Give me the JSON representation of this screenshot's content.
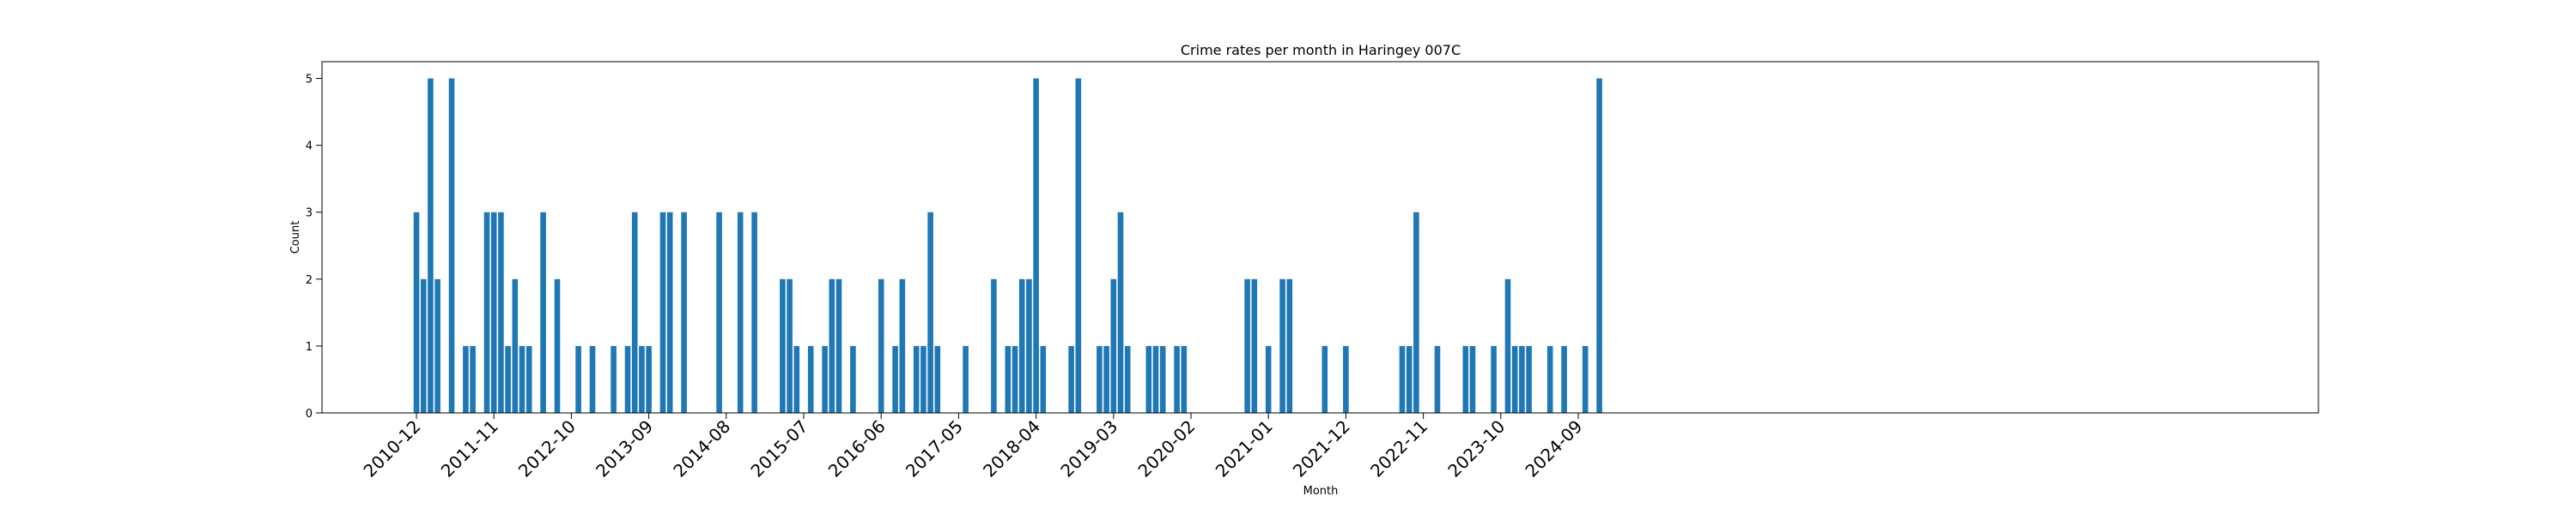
{
  "chart_data": {
    "type": "bar",
    "title": "Crime rates per month in Haringey 007C",
    "xlabel": "Month",
    "ylabel": "Count",
    "ylim": [
      0,
      5.25
    ],
    "yticks": [
      0,
      1,
      2,
      3,
      4,
      5
    ],
    "xticks": [
      "2010-12",
      "2011-11",
      "2012-10",
      "2013-09",
      "2014-08",
      "2015-07",
      "2016-06",
      "2017-05",
      "2018-04",
      "2019-03",
      "2020-02",
      "2021-01",
      "2021-12",
      "2022-11",
      "2023-10",
      "2024-09"
    ],
    "x_start": "2010-12",
    "x_end": "2024-09",
    "grid": false,
    "color": "#1f77b4",
    "bars": [
      {
        "x": "2010-12",
        "y": 3
      },
      {
        "x": "2011-01",
        "y": 2
      },
      {
        "x": "2011-02",
        "y": 5
      },
      {
        "x": "2011-03",
        "y": 2
      },
      {
        "x": "2011-05",
        "y": 5
      },
      {
        "x": "2011-07",
        "y": 1
      },
      {
        "x": "2011-08",
        "y": 1
      },
      {
        "x": "2011-10",
        "y": 3
      },
      {
        "x": "2011-11",
        "y": 3
      },
      {
        "x": "2011-12",
        "y": 3
      },
      {
        "x": "2012-01",
        "y": 1
      },
      {
        "x": "2012-02",
        "y": 2
      },
      {
        "x": "2012-03",
        "y": 1
      },
      {
        "x": "2012-04",
        "y": 1
      },
      {
        "x": "2012-06",
        "y": 3
      },
      {
        "x": "2012-08",
        "y": 2
      },
      {
        "x": "2012-11",
        "y": 1
      },
      {
        "x": "2013-01",
        "y": 1
      },
      {
        "x": "2013-04",
        "y": 1
      },
      {
        "x": "2013-06",
        "y": 1
      },
      {
        "x": "2013-07",
        "y": 3
      },
      {
        "x": "2013-08",
        "y": 1
      },
      {
        "x": "2013-09",
        "y": 1
      },
      {
        "x": "2013-11",
        "y": 3
      },
      {
        "x": "2013-12",
        "y": 3
      },
      {
        "x": "2014-02",
        "y": 3
      },
      {
        "x": "2014-07",
        "y": 3
      },
      {
        "x": "2014-10",
        "y": 3
      },
      {
        "x": "2014-12",
        "y": 3
      },
      {
        "x": "2015-04",
        "y": 2
      },
      {
        "x": "2015-05",
        "y": 2
      },
      {
        "x": "2015-06",
        "y": 1
      },
      {
        "x": "2015-08",
        "y": 1
      },
      {
        "x": "2015-10",
        "y": 1
      },
      {
        "x": "2015-11",
        "y": 2
      },
      {
        "x": "2015-12",
        "y": 2
      },
      {
        "x": "2016-02",
        "y": 1
      },
      {
        "x": "2016-06",
        "y": 2
      },
      {
        "x": "2016-08",
        "y": 1
      },
      {
        "x": "2016-09",
        "y": 2
      },
      {
        "x": "2016-11",
        "y": 1
      },
      {
        "x": "2016-12",
        "y": 1
      },
      {
        "x": "2017-01",
        "y": 3
      },
      {
        "x": "2017-02",
        "y": 1
      },
      {
        "x": "2017-06",
        "y": 1
      },
      {
        "x": "2017-10",
        "y": 2
      },
      {
        "x": "2017-12",
        "y": 1
      },
      {
        "x": "2018-01",
        "y": 1
      },
      {
        "x": "2018-02",
        "y": 2
      },
      {
        "x": "2018-03",
        "y": 2
      },
      {
        "x": "2018-04",
        "y": 5
      },
      {
        "x": "2018-05",
        "y": 1
      },
      {
        "x": "2018-09",
        "y": 1
      },
      {
        "x": "2018-10",
        "y": 5
      },
      {
        "x": "2019-01",
        "y": 1
      },
      {
        "x": "2019-02",
        "y": 1
      },
      {
        "x": "2019-03",
        "y": 2
      },
      {
        "x": "2019-04",
        "y": 3
      },
      {
        "x": "2019-05",
        "y": 1
      },
      {
        "x": "2019-08",
        "y": 1
      },
      {
        "x": "2019-09",
        "y": 1
      },
      {
        "x": "2019-10",
        "y": 1
      },
      {
        "x": "2019-12",
        "y": 1
      },
      {
        "x": "2020-01",
        "y": 1
      },
      {
        "x": "2020-10",
        "y": 2
      },
      {
        "x": "2020-11",
        "y": 2
      },
      {
        "x": "2021-01",
        "y": 1
      },
      {
        "x": "2021-03",
        "y": 2
      },
      {
        "x": "2021-04",
        "y": 2
      },
      {
        "x": "2021-09",
        "y": 1
      },
      {
        "x": "2021-12",
        "y": 1
      },
      {
        "x": "2022-08",
        "y": 1
      },
      {
        "x": "2022-09",
        "y": 1
      },
      {
        "x": "2022-10",
        "y": 3
      },
      {
        "x": "2023-01",
        "y": 1
      },
      {
        "x": "2023-05",
        "y": 1
      },
      {
        "x": "2023-06",
        "y": 1
      },
      {
        "x": "2023-09",
        "y": 1
      },
      {
        "x": "2023-11",
        "y": 2
      },
      {
        "x": "2023-12",
        "y": 1
      },
      {
        "x": "2024-01",
        "y": 1
      },
      {
        "x": "2024-02",
        "y": 1
      },
      {
        "x": "2024-05",
        "y": 1
      },
      {
        "x": "2024-07",
        "y": 1
      },
      {
        "x": "2024-10",
        "y": 1
      },
      {
        "x": "2024-12",
        "y": 5
      }
    ]
  }
}
